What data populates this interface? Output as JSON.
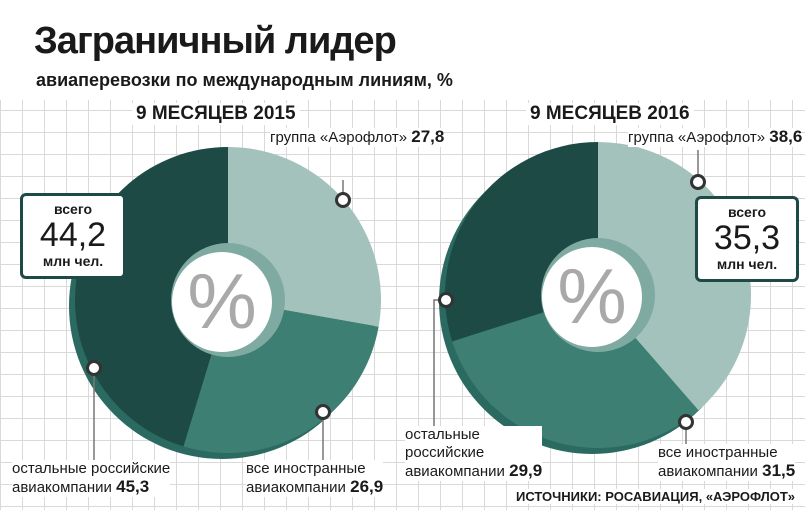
{
  "title": "Заграничный лидер",
  "subtitle": "авиаперевозки по международным линиям, %",
  "sources": "ИСТОЧНИКИ: РОСАВИАЦИЯ, «АЭРОФЛОТ»",
  "center_symbol": "%",
  "colors": {
    "aeroflot": "#a3c2bb",
    "foreign": "#3e7f74",
    "russian": "#1e4a45"
  },
  "chart_data": [
    {
      "type": "pie",
      "title": "9 МЕСЯЦЕВ 2015",
      "total": {
        "top": "всего",
        "value": "44,2",
        "unit": "млн чел."
      },
      "slices": [
        {
          "label": "группа «Аэрофлот»",
          "value": 27.8,
          "value_text": "27,8"
        },
        {
          "label": "все иностранные авиакомпании",
          "line1": "все иностранные",
          "line2": "авиакомпании",
          "value": 26.9,
          "value_text": "26,9"
        },
        {
          "label": "остальные российские авиакомпании",
          "line1": "остальные российские",
          "line2": "авиакомпании",
          "value": 45.3,
          "value_text": "45,3"
        }
      ]
    },
    {
      "type": "pie",
      "title": "9 МЕСЯЦЕВ 2016",
      "total": {
        "top": "всего",
        "value": "35,3",
        "unit": "млн чел."
      },
      "slices": [
        {
          "label": "группа «Аэрофлот»",
          "value": 38.6,
          "value_text": "38,6"
        },
        {
          "label": "все иностранные авиакомпании",
          "line1": "все иностранные",
          "line2": "авиакомпании",
          "value": 31.5,
          "value_text": "31,5"
        },
        {
          "label": "остальные российские авиакомпании",
          "line1": "остальные",
          "line2": "российские",
          "line3": "авиакомпании",
          "value": 29.9,
          "value_text": "29,9"
        }
      ]
    }
  ]
}
